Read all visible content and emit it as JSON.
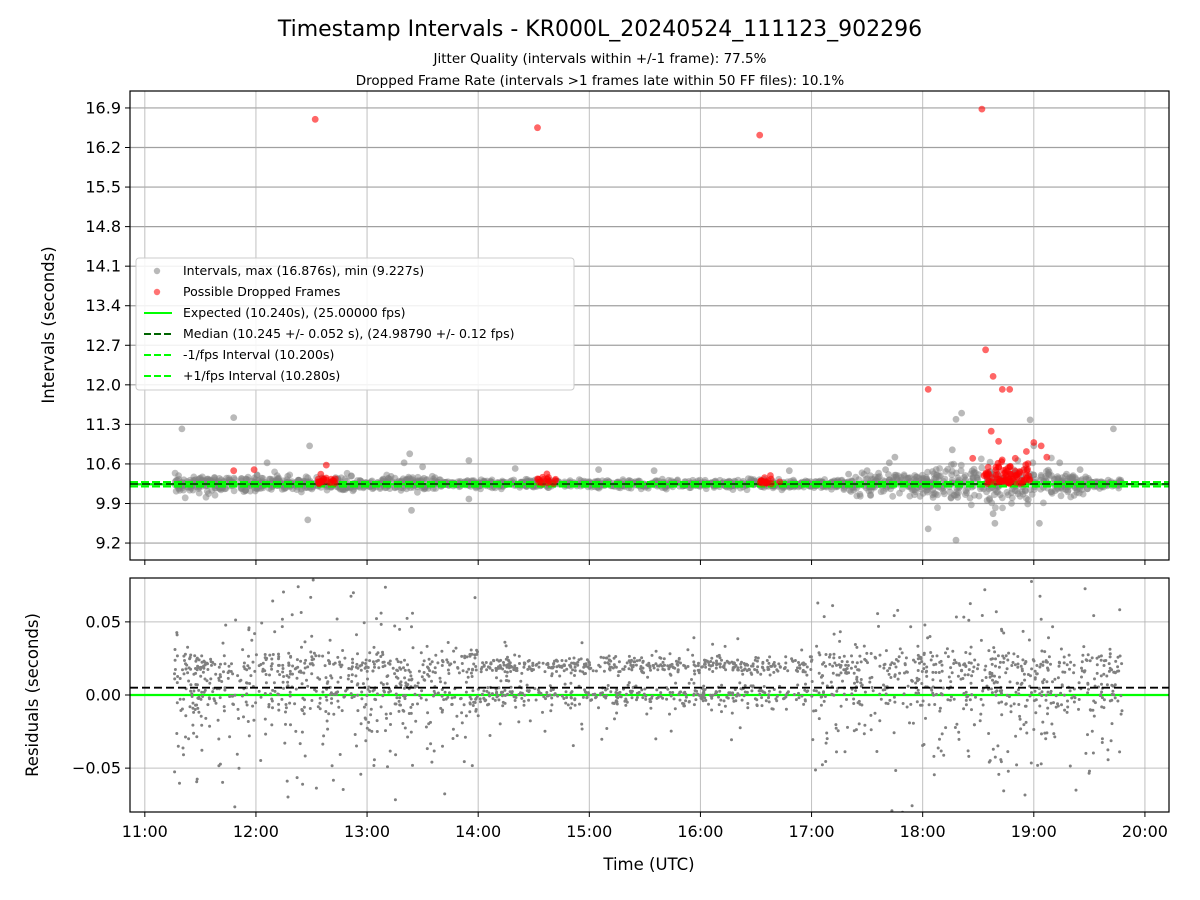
{
  "title": "Timestamp Intervals - KR000L_20240524_111123_902296",
  "subtitle1": "Jitter Quality (intervals within +/-1 frame): 77.5%",
  "subtitle2": "Dropped Frame Rate (intervals >1 frames late within 50 FF files): 10.1%",
  "colors": {
    "intervals": "#808080",
    "dropped": "#ff0000",
    "expected": "#00ff00",
    "median": "#006400",
    "fps_bounds": "#00ff00",
    "grid": "#b0b0b0"
  },
  "chart_data": [
    {
      "type": "scatter",
      "panel": "top",
      "ylabel": "Intervals (seconds)",
      "ylim": [
        8.9,
        17.2
      ],
      "yticks": [
        "9.2",
        "9.9",
        "10.6",
        "11.3",
        "12.0",
        "12.7",
        "13.4",
        "14.1",
        "14.8",
        "15.5",
        "16.2",
        "16.9"
      ],
      "grid": true,
      "legend_position": "center-left",
      "legend": [
        "Intervals, max (16.876s), min (9.227s)",
        "Possible Dropped Frames",
        "Expected (10.240s), (25.00000 fps)",
        "Median (10.245 +/- 0.052 s), (24.98790 +/- 0.12 fps)",
        "-1/fps Interval (10.200s)",
        "+1/fps Interval (10.280s)"
      ],
      "expected": 10.24,
      "median": 10.245,
      "lower_bound": 10.2,
      "upper_bound": 10.28,
      "series": [
        {
          "name": "Intervals, max (16.876s), min (9.227s)",
          "points": [
            [
              "11:20",
              11.22
            ],
            [
              "11:48",
              11.42
            ],
            [
              "12:29",
              10.92
            ],
            [
              "12:28",
              9.61
            ],
            [
              "12:06",
              10.62
            ],
            [
              "13:13",
              10.38
            ],
            [
              "13:20",
              10.62
            ],
            [
              "13:23",
              10.78
            ],
            [
              "13:24",
              9.78
            ],
            [
              "13:30",
              10.55
            ],
            [
              "13:55",
              10.66
            ],
            [
              "13:55",
              9.98
            ],
            [
              "14:20",
              10.52
            ],
            [
              "15:05",
              10.5
            ],
            [
              "15:35",
              10.48
            ],
            [
              "16:48",
              10.48
            ],
            [
              "17:20",
              10.42
            ],
            [
              "17:30",
              10.48
            ],
            [
              "17:40",
              10.5
            ],
            [
              "17:42",
              10.62
            ],
            [
              "17:45",
              10.72
            ],
            [
              "18:03",
              9.45
            ],
            [
              "18:16",
              10.85
            ],
            [
              "18:18",
              9.25
            ],
            [
              "18:21",
              11.5
            ],
            [
              "18:18",
              11.39
            ],
            [
              "18:38",
              9.72
            ],
            [
              "18:39",
              9.55
            ],
            [
              "18:58",
              11.38
            ],
            [
              "19:00",
              10.92
            ],
            [
              "19:03",
              9.55
            ],
            [
              "19:14",
              10.62
            ],
            [
              "19:25",
              10.5
            ],
            [
              "19:43",
              11.22
            ]
          ]
        },
        {
          "name": "Possible Dropped Frames",
          "points": [
            [
              "12:32",
              16.7
            ],
            [
              "14:32",
              16.55
            ],
            [
              "16:32",
              16.42
            ],
            [
              "18:32",
              16.88
            ],
            [
              "18:03",
              11.92
            ],
            [
              "18:34",
              12.62
            ],
            [
              "18:38",
              12.15
            ],
            [
              "18:43",
              11.92
            ],
            [
              "18:47",
              11.92
            ],
            [
              "18:37",
              11.18
            ],
            [
              "18:41",
              11.0
            ],
            [
              "18:27",
              10.7
            ],
            [
              "19:00",
              10.98
            ],
            [
              "19:04",
              10.92
            ],
            [
              "18:56",
              10.82
            ],
            [
              "18:50",
              10.7
            ],
            [
              "19:07",
              10.72
            ],
            [
              "12:38",
              10.58
            ],
            [
              "11:48",
              10.48
            ],
            [
              "11:59",
              10.5
            ],
            [
              "12:35",
              10.42
            ]
          ]
        }
      ]
    },
    {
      "type": "scatter",
      "panel": "bottom",
      "xlabel": "Time (UTC)",
      "ylabel": "Residuals (seconds)",
      "ylim": [
        -0.08,
        0.08
      ],
      "yticks": [
        "−0.05",
        "0.00",
        "0.05"
      ],
      "xlim": [
        "10:52",
        "20:13"
      ],
      "xticks": [
        "11:00",
        "12:00",
        "13:00",
        "14:00",
        "15:00",
        "16:00",
        "17:00",
        "18:00",
        "19:00",
        "20:00"
      ],
      "grid": true,
      "zero_line": 0.0,
      "median_residual": 0.005,
      "series": [
        {
          "name": "",
          "time_range": [
            "11:16",
            "19:48"
          ],
          "typical_range": [
            -0.025,
            0.035
          ],
          "extreme_range": [
            -0.08,
            0.08
          ]
        }
      ]
    }
  ]
}
